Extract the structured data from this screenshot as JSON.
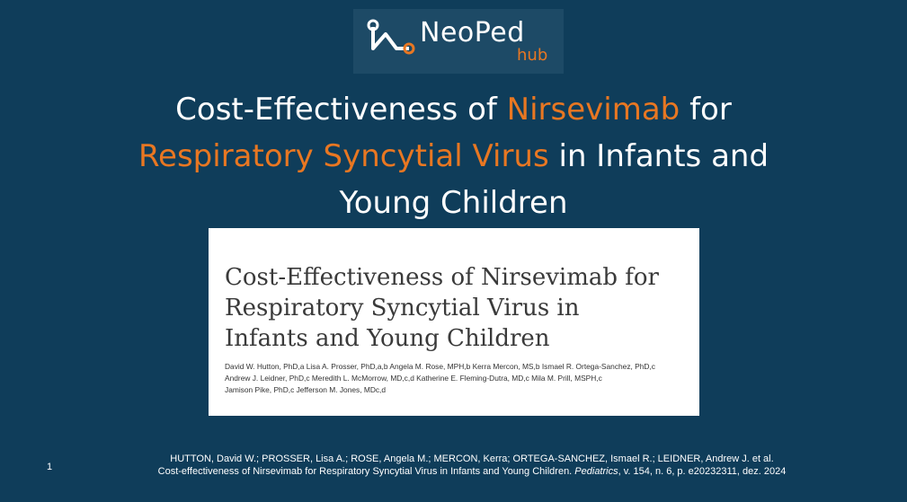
{
  "logo": {
    "name": "NeoPed",
    "sub": "hub",
    "colors": {
      "accent": "#e87722",
      "box": "#1d4a66"
    }
  },
  "title": {
    "line1_pre": "Cost-Effectiveness of ",
    "line1_accent": "Nirsevimab",
    "line1_post": " for",
    "line2_accent": "Respiratory Syncytial Virus",
    "line2_post": " in Infants and",
    "line3": "Young Children"
  },
  "paper": {
    "title_line1": "Cost-Effectiveness of Nirsevimab for",
    "title_line2": "Respiratory Syncytial Virus in",
    "title_line3": "Infants and Young Children",
    "authors_line1": "David W. Hutton, PhD,a Lisa A. Prosser, PhD,a,b Angela M. Rose, MPH,b Kerra Mercon, MS,b Ismael R. Ortega-Sanchez, PhD,c",
    "authors_line2": "Andrew J. Leidner, PhD,c Meredith L. McMorrow, MD,c,d Katherine E. Fleming-Dutra, MD,c Mila M. Prill, MSPH,c",
    "authors_line3": "Jamison Pike, PhD,c Jefferson M. Jones, MDc,d"
  },
  "footer": {
    "page_number": "1",
    "citation_line1": "HUTTON, David W.; PROSSER, Lisa A.; ROSE, Angela M.; MERCON, Kerra; ORTEGA-SANCHEZ, Ismael R.; LEIDNER, Andrew J. et al.",
    "citation_line2_pre": "Cost-effectiveness of Nirsevimab for Respiratory Syncytial Virus in Infants and Young Children. ",
    "citation_line2_journal": "Pediatrics",
    "citation_line2_post": ", v. 154, n. 6, p. e20232311, dez. 2024"
  },
  "colors": {
    "background": "#0f3d5a",
    "accent": "#e87722"
  }
}
